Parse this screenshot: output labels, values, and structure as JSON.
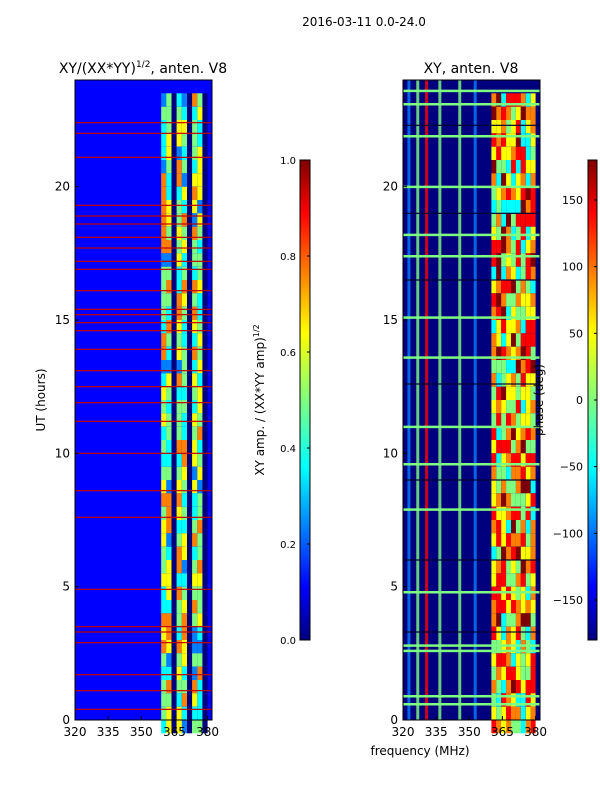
{
  "suptitle": "2016-03-11 0.0-24.0",
  "colormap": [
    "#00007f",
    "#0000ff",
    "#007fff",
    "#00ffff",
    "#7fff7f",
    "#ffff00",
    "#ff7f00",
    "#ff0000",
    "#7f0000"
  ],
  "chart_data": [
    {
      "type": "heatmap",
      "title_main": "XY/(XX*YY)",
      "title_sup": "1/2",
      "title_tail": ", anten. V8",
      "xlabel": "",
      "ylabel": "UT (hours)",
      "xlim": [
        320,
        382
      ],
      "ylim": [
        0,
        24
      ],
      "xticks": [
        {
          "value": 320,
          "label": "320"
        },
        {
          "value": 335,
          "label": "335"
        },
        {
          "value": 350,
          "label": "350"
        },
        {
          "value": 365,
          "label": "365"
        },
        {
          "value": 380,
          "label": "380"
        }
      ],
      "yticks": [
        {
          "value": 0,
          "label": "0"
        },
        {
          "value": 5,
          "label": "5"
        },
        {
          "value": 10,
          "label": "10"
        },
        {
          "value": 15,
          "label": "15"
        },
        {
          "value": 20,
          "label": "20"
        }
      ],
      "background_value": 0.08,
      "active_band_mhz": [
        359,
        380
      ],
      "active_band_level": 0.55,
      "flagged_rows_hours": [
        0.4,
        1.1,
        1.7,
        2.9,
        3.3,
        3.5,
        4.9,
        7.6,
        8.6,
        10.0,
        11.2,
        11.9,
        12.5,
        13.1,
        13.9,
        14.6,
        14.9,
        15.2,
        15.4,
        16.1,
        16.9,
        17.2,
        17.7,
        18.1,
        18.6,
        18.9,
        19.3,
        21.1,
        22.0,
        22.4
      ]
    },
    {
      "type": "heatmap",
      "title_main": "XY, anten. V8",
      "xlabel": "frequency (MHz)",
      "ylabel": "",
      "xlim": [
        320,
        382
      ],
      "ylim": [
        0,
        24
      ],
      "xticks": [
        {
          "value": 320,
          "label": "320"
        },
        {
          "value": 335,
          "label": "335"
        },
        {
          "value": 350,
          "label": "350"
        },
        {
          "value": 365,
          "label": "365"
        },
        {
          "value": 380,
          "label": "380"
        }
      ],
      "yticks": [
        {
          "value": 0,
          "label": "0"
        },
        {
          "value": 5,
          "label": "5"
        },
        {
          "value": 10,
          "label": "10"
        },
        {
          "value": 15,
          "label": "15"
        },
        {
          "value": 20,
          "label": "20"
        }
      ],
      "background_value": -160,
      "active_band_mhz": [
        360,
        380
      ],
      "bright_rows_hours": [
        0.6,
        0.9,
        2.6,
        2.8,
        4.8,
        7.9,
        9.6,
        11.0,
        13.6,
        15.1,
        17.4,
        18.2,
        20.0,
        21.9,
        23.1,
        23.6
      ],
      "flagged_rows_hours": [
        3.3,
        6.0,
        9.0,
        12.6,
        16.5,
        19.0,
        22.3
      ]
    }
  ],
  "colorbars": [
    {
      "label": "XY amp. / (XX*YY amp)",
      "label_sup": "1/2",
      "min": 0.0,
      "max": 1.0,
      "ticks": [
        {
          "value": 0.0,
          "label": "0.0"
        },
        {
          "value": 0.2,
          "label": "0.2"
        },
        {
          "value": 0.4,
          "label": "0.4"
        },
        {
          "value": 0.6,
          "label": "0.6"
        },
        {
          "value": 0.8,
          "label": "0.8"
        },
        {
          "value": 1.0,
          "label": "1.0"
        }
      ]
    },
    {
      "label": "phase (deg)",
      "min": -180,
      "max": 180,
      "ticks": [
        {
          "value": -150,
          "label": "−150"
        },
        {
          "value": -100,
          "label": "−100"
        },
        {
          "value": -50,
          "label": "−50"
        },
        {
          "value": 0,
          "label": "0"
        },
        {
          "value": 50,
          "label": "50"
        },
        {
          "value": 100,
          "label": "100"
        },
        {
          "value": 150,
          "label": "150"
        }
      ]
    }
  ]
}
